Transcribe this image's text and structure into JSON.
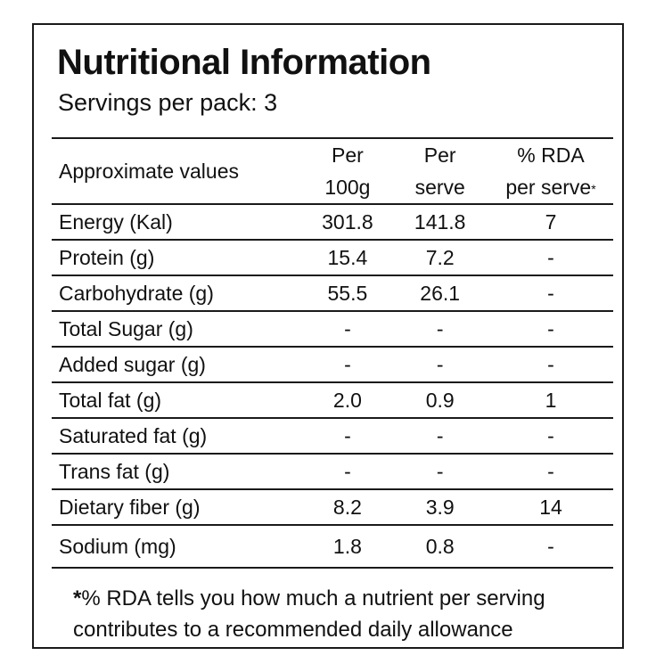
{
  "title": "Nutritional Information",
  "servings": "Servings per pack: 3",
  "header": {
    "col0": "Approximate values",
    "col1_line1": "Per",
    "col1_line2": "100g",
    "col2_line1": "Per",
    "col2_line2": "serve",
    "col3_line1": "% RDA",
    "col3_line2": "per serve",
    "col3_mark": "*"
  },
  "rows": [
    {
      "name": "Energy (Kal)",
      "per100": "301.8",
      "perserve": "141.8",
      "rda": "7"
    },
    {
      "name": "Protein (g)",
      "per100": "15.4",
      "perserve": "7.2",
      "rda": "-"
    },
    {
      "name": "Carbohydrate (g)",
      "per100": "55.5",
      "perserve": "26.1",
      "rda": "-"
    },
    {
      "name": "Total Sugar (g)",
      "per100": "-",
      "perserve": "-",
      "rda": "-"
    },
    {
      "name": "Added sugar (g)",
      "per100": "-",
      "perserve": "-",
      "rda": "-"
    },
    {
      "name": "Total fat (g)",
      "per100": "2.0",
      "perserve": "0.9",
      "rda": "1"
    },
    {
      "name": "Saturated fat (g)",
      "per100": "-",
      "perserve": "-",
      "rda": "-"
    },
    {
      "name": "Trans fat (g)",
      "per100": "-",
      "perserve": "-",
      "rda": "-"
    },
    {
      "name": "Dietary fiber (g)",
      "per100": "8.2",
      "perserve": "3.9",
      "rda": "14"
    },
    {
      "name": "Sodium (mg)",
      "per100": "1.8",
      "perserve": "0.8",
      "rda": "-"
    }
  ],
  "footnote": {
    "mark": "*",
    "line1": "% RDA tells you how much a nutrient per serving",
    "line2": "contributes to a recommended daily allowance"
  },
  "colors": {
    "ink": "#111111",
    "rule": "#1a1a1a",
    "background": "#ffffff"
  }
}
